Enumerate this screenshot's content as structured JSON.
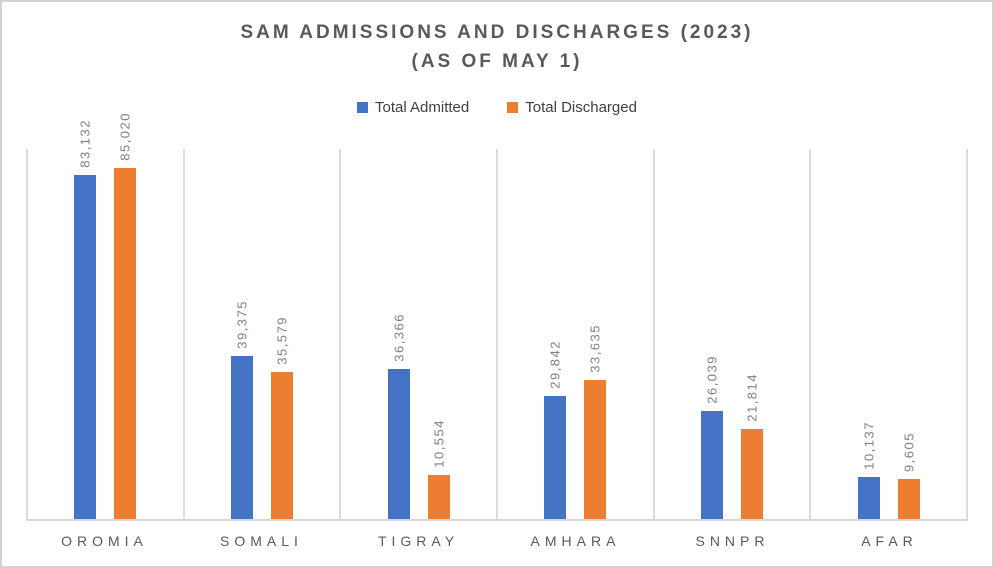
{
  "chart": {
    "title_line1": "SAM ADMISSIONS AND DISCHARGES (2023)",
    "title_line2": "(AS OF MAY 1)"
  },
  "chart_data": {
    "type": "bar",
    "title": "SAM ADMISSIONS AND DISCHARGES (2023) (AS OF MAY 1)",
    "categories": [
      "OROMIA",
      "SOMALI",
      "TIGRAY",
      "AMHARA",
      "SNNPR",
      "AFAR"
    ],
    "series": [
      {
        "name": "Total Admitted",
        "color": "#4472C4",
        "values": [
          83132,
          39375,
          36366,
          29842,
          26039,
          10137
        ],
        "labels": [
          "83,132",
          "39,375",
          "36,366",
          "29,842",
          "26,039",
          "10,137"
        ]
      },
      {
        "name": "Total Discharged",
        "color": "#ED7D31",
        "values": [
          85020,
          35579,
          10554,
          33635,
          21814,
          9605
        ],
        "labels": [
          "85,020",
          "35,579",
          "10,554",
          "33,635",
          "21,814",
          "9,605"
        ]
      }
    ],
    "xlabel": "",
    "ylabel": "",
    "ylim": [
      0,
      90000
    ],
    "grid": "vertical-category-separators",
    "legend_position": "top",
    "data_labels": "rotated-90-above-bars"
  },
  "colors": {
    "admitted": "#4472C4",
    "discharged": "#ED7D31",
    "title_text": "#595959",
    "data_label_text": "#7F7F7F",
    "category_label_text": "#595959",
    "gridline": "#DCDCDC",
    "axis_line": "#D6D6D6",
    "frame_border": "#D2D2D2",
    "background": "#FFFFFF"
  }
}
